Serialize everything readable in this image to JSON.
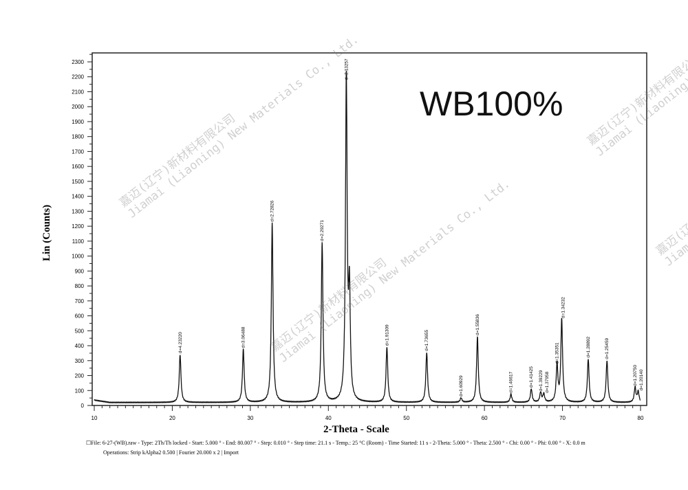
{
  "chart_data": {
    "type": "line",
    "title": "WB100%",
    "xlabel": "2-Theta - Scale",
    "ylabel": "Lin (Counts)",
    "xlim": [
      10,
      80
    ],
    "ylim": [
      0,
      2300
    ],
    "xticks": [
      10,
      20,
      30,
      40,
      50,
      60,
      70,
      80
    ],
    "yticks": [
      0,
      100,
      200,
      300,
      400,
      500,
      600,
      700,
      800,
      900,
      1000,
      1100,
      1200,
      1300,
      1400,
      1500,
      1600,
      1700,
      1800,
      1900,
      2000,
      2100,
      2200,
      2300
    ],
    "background_counts": 20,
    "grid": false,
    "peaks": [
      {
        "two_theta": 21.0,
        "counts": 320,
        "label": "d=4.23220"
      },
      {
        "two_theta": 29.1,
        "counts": 355,
        "label": "d=3.06488"
      },
      {
        "two_theta": 32.8,
        "counts": 1200,
        "label": "d=2.72826"
      },
      {
        "two_theta": 39.2,
        "counts": 1070,
        "label": "d=2.29271"
      },
      {
        "two_theta": 42.3,
        "counts": 2150,
        "label": "d=2.13257"
      },
      {
        "two_theta": 42.7,
        "counts": 700,
        "label": ""
      },
      {
        "two_theta": 47.5,
        "counts": 370,
        "label": "d=1.91309"
      },
      {
        "two_theta": 52.6,
        "counts": 335,
        "label": "d=1.73655"
      },
      {
        "two_theta": 57.0,
        "counts": 30,
        "label": "d=1.60929"
      },
      {
        "two_theta": 59.1,
        "counts": 440,
        "label": "d=1.55836"
      },
      {
        "two_theta": 63.4,
        "counts": 55,
        "label": "d=1.46617"
      },
      {
        "two_theta": 66.0,
        "counts": 90,
        "label": "d=1.41425"
      },
      {
        "two_theta": 67.2,
        "counts": 65,
        "label": "d=1.39229"
      },
      {
        "two_theta": 67.6,
        "counts": 55,
        "label": "d=1.37958"
      },
      {
        "two_theta": 69.3,
        "counts": 250,
        "label": "d=1.35351"
      },
      {
        "two_theta": 69.9,
        "counts": 555,
        "label": "d=1.34232"
      },
      {
        "two_theta": 73.3,
        "counts": 290,
        "label": "d=1.28892"
      },
      {
        "two_theta": 75.7,
        "counts": 280,
        "label": "d=1.25459"
      },
      {
        "two_theta": 79.3,
        "counts": 100,
        "label": "d=1.20750"
      },
      {
        "two_theta": 79.7,
        "counts": 70,
        "label": "d=1.20140"
      }
    ]
  },
  "footer": {
    "line1": "File: 6-27-(WB).raw - Type: 2Th/Th locked - Start: 5.000 ° - End: 80.007 ° - Step: 0.010 ° - Step time: 21.1 s - Temp.: 25 °C (Room) - Time Started: 11 s - 2-Theta: 5.000 ° - Theta: 2.500 ° - Chi: 0.00 ° - Phi: 0.00 ° - X: 0.0 m",
    "line2": "Operations: Strip kAlpha2 0.500 | Fourier 20.000 x 2 | Import"
  },
  "watermark": {
    "cn": "嘉迈(辽宁)新材料有限公司",
    "en": "Jiamai (Liaoning) New Materials Co., Ltd."
  }
}
